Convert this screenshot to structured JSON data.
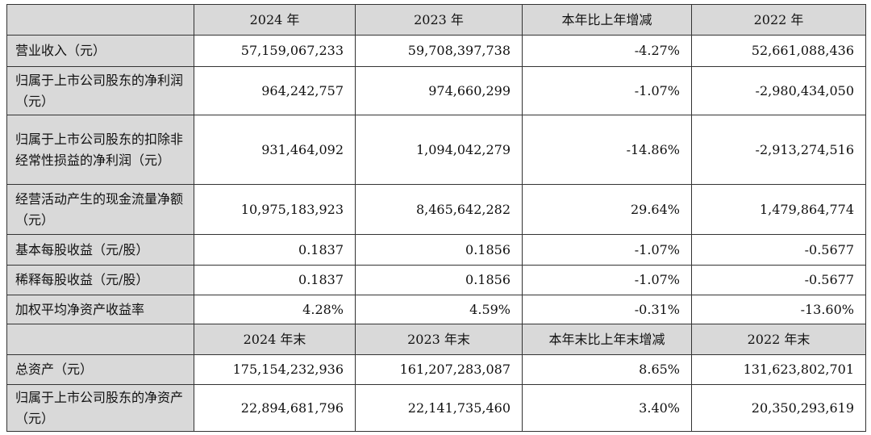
{
  "header1": {
    "col1": "2024 年",
    "col2": "2023 年",
    "col3": "本年比上年增减",
    "col4": "2022 年"
  },
  "section1": [
    {
      "label": "营业收入（元）",
      "v2024": "57,159,067,233",
      "v2023": "59,708,397,738",
      "change": "-4.27%",
      "v2022": "52,661,088,436"
    },
    {
      "label": "归属于上市公司股东的净利润（元）",
      "v2024": "964,242,757",
      "v2023": "974,660,299",
      "change": "-1.07%",
      "v2022": "-2,980,434,050"
    },
    {
      "label": "归属于上市公司股东的扣除非经常性损益的净利润（元）",
      "v2024": "931,464,092",
      "v2023": "1,094,042,279",
      "change": "-14.86%",
      "v2022": "-2,913,274,516"
    },
    {
      "label": "经营活动产生的现金流量净额（元）",
      "v2024": "10,975,183,923",
      "v2023": "8,465,642,282",
      "change": "29.64%",
      "v2022": "1,479,864,774"
    },
    {
      "label": "基本每股收益（元/股）",
      "v2024": "0.1837",
      "v2023": "0.1856",
      "change": "-1.07%",
      "v2022": "-0.5677"
    },
    {
      "label": "稀释每股收益（元/股）",
      "v2024": "0.1837",
      "v2023": "0.1856",
      "change": "-1.07%",
      "v2022": "-0.5677"
    },
    {
      "label": "加权平均净资产收益率",
      "v2024": "4.28%",
      "v2023": "4.59%",
      "change": "-0.31%",
      "v2022": "-13.60%"
    }
  ],
  "header2": {
    "col1": "2024 年末",
    "col2": "2023 年末",
    "col3": "本年末比上年末增减",
    "col4": "2022 年末"
  },
  "section2": [
    {
      "label": "总资产（元）",
      "v2024": "175,154,232,936",
      "v2023": "161,207,283,087",
      "change": "8.65%",
      "v2022": "131,623,802,701"
    },
    {
      "label": "归属于上市公司股东的净资产（元）",
      "v2024": "22,894,681,796",
      "v2023": "22,141,735,460",
      "change": "3.40%",
      "v2022": "20,350,293,619"
    }
  ]
}
